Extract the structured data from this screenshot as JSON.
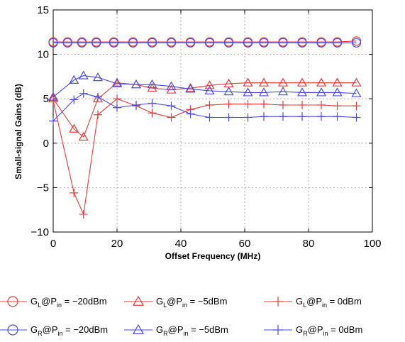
{
  "chart_data": {
    "type": "line",
    "title": "",
    "xlabel": "Offset Frequency (MHz)",
    "ylabel": "Small-signal Gains (dB)",
    "xlim": [
      0,
      100
    ],
    "ylim": [
      -10,
      15
    ],
    "xticks": [
      "0",
      "20",
      "40",
      "60",
      "80",
      "100"
    ],
    "yticks": [
      "15",
      "10",
      "5",
      "0",
      "−5",
      "−10"
    ],
    "grid": true,
    "legend_position": "bottom",
    "series": [
      {
        "name_main": "G",
        "name_sub": "L",
        "name_at": "@P",
        "name_in": "in",
        "name_rest": " = −20dBm",
        "color": "#e83a3a",
        "marker": "circle",
        "x": [
          0,
          4.5,
          9,
          13.5,
          19,
          25,
          31,
          37,
          43,
          49,
          55,
          61,
          66,
          72,
          78,
          84,
          89,
          95
        ],
        "y": [
          11.4,
          11.4,
          11.4,
          11.4,
          11.4,
          11.4,
          11.4,
          11.4,
          11.4,
          11.4,
          11.4,
          11.4,
          11.4,
          11.4,
          11.4,
          11.4,
          11.4,
          11.5
        ]
      },
      {
        "name_main": "G",
        "name_sub": "L",
        "name_at": "@P",
        "name_in": "in",
        "name_rest": " = −5dBm",
        "color": "#e83a3a",
        "marker": "triangle",
        "x": [
          0,
          6.5,
          9.5,
          14,
          20,
          26,
          31,
          37,
          43,
          49,
          55,
          61,
          66,
          72,
          78,
          84,
          89,
          95
        ],
        "y": [
          5.0,
          1.6,
          0.7,
          5.0,
          6.8,
          6.6,
          6.2,
          6.0,
          6.2,
          6.5,
          6.7,
          6.8,
          6.8,
          6.8,
          6.8,
          6.8,
          6.8,
          6.8
        ]
      },
      {
        "name_main": "G",
        "name_sub": "L",
        "name_at": "@P",
        "name_in": "in",
        "name_rest": " = 0dBm",
        "color": "#e83a3a",
        "marker": "plus",
        "x": [
          0,
          6.5,
          9.5,
          14,
          20,
          26,
          31,
          37,
          43,
          49,
          55,
          61,
          66,
          72,
          78,
          84,
          89,
          95
        ],
        "y": [
          4.8,
          -5.6,
          -8.0,
          3.2,
          5.0,
          4.2,
          3.4,
          2.9,
          3.8,
          4.3,
          4.4,
          4.4,
          4.4,
          4.3,
          4.3,
          4.3,
          4.2,
          4.2
        ]
      },
      {
        "name_main": "G",
        "name_sub": "R",
        "name_at": "@P",
        "name_in": "in",
        "name_rest": " = −20dBm",
        "color": "#4a4ae8",
        "marker": "circle",
        "x": [
          0,
          4.5,
          9,
          13.5,
          19,
          25,
          31,
          37,
          43,
          49,
          55,
          61,
          66,
          72,
          78,
          84,
          89,
          95
        ],
        "y": [
          11.3,
          11.3,
          11.3,
          11.3,
          11.3,
          11.3,
          11.3,
          11.3,
          11.3,
          11.3,
          11.3,
          11.3,
          11.3,
          11.3,
          11.3,
          11.3,
          11.3,
          11.3
        ]
      },
      {
        "name_main": "G",
        "name_sub": "R",
        "name_at": "@P",
        "name_in": "in",
        "name_rest": " = −5dBm",
        "color": "#4a4ae8",
        "marker": "triangle",
        "x": [
          0,
          6.5,
          9.5,
          14,
          20,
          26,
          31,
          37,
          43,
          49,
          55,
          61,
          66,
          72,
          78,
          84,
          89,
          95
        ],
        "y": [
          5.2,
          7.1,
          7.6,
          7.4,
          6.7,
          6.6,
          6.6,
          6.4,
          6.1,
          5.9,
          5.8,
          5.7,
          5.7,
          5.8,
          5.7,
          5.7,
          5.7,
          5.6
        ]
      },
      {
        "name_main": "G",
        "name_sub": "R",
        "name_at": "@P",
        "name_in": "in",
        "name_rest": " = 0dBm",
        "color": "#4a4ae8",
        "marker": "plus",
        "x": [
          0,
          6.5,
          9.5,
          14,
          20,
          26,
          31,
          37,
          43,
          49,
          55,
          61,
          66,
          72,
          78,
          84,
          89,
          95
        ],
        "y": [
          2.5,
          4.9,
          5.6,
          5.2,
          4.0,
          4.3,
          4.5,
          4.2,
          3.3,
          2.9,
          2.9,
          2.9,
          3.0,
          3.0,
          3.0,
          3.0,
          3.0,
          2.9
        ]
      }
    ]
  }
}
